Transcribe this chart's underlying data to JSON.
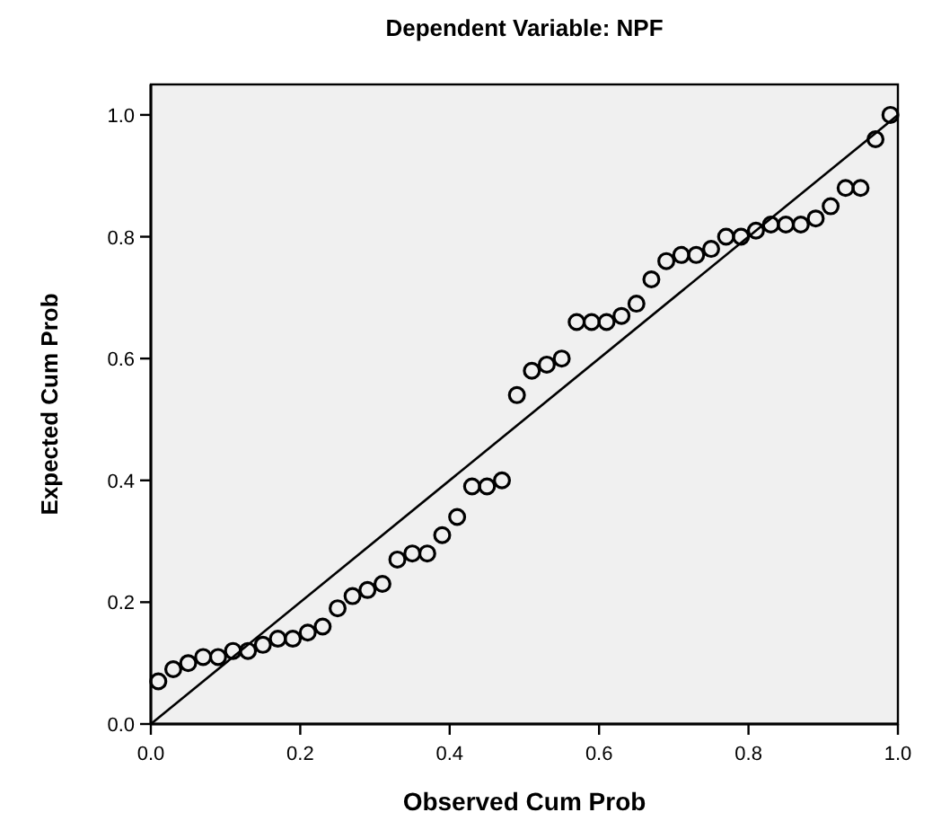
{
  "chart_data": {
    "type": "scatter",
    "title": "Dependent Variable: NPF",
    "xlabel": "Observed Cum Prob",
    "ylabel": "Expected Cum Prob",
    "xlim": [
      0,
      1
    ],
    "ylim": [
      0,
      1.05
    ],
    "xticks": [
      {
        "value": 0,
        "label": "0.0"
      },
      {
        "value": 0.2,
        "label": "0.2"
      },
      {
        "value": 0.4,
        "label": "0.4"
      },
      {
        "value": 0.6,
        "label": "0.6"
      },
      {
        "value": 0.8,
        "label": "0.8"
      },
      {
        "value": 1,
        "label": "1.0"
      }
    ],
    "yticks": [
      {
        "value": 0,
        "label": "0.0"
      },
      {
        "value": 0.2,
        "label": "0.2"
      },
      {
        "value": 0.4,
        "label": "0.4"
      },
      {
        "value": 0.6,
        "label": "0.6"
      },
      {
        "value": 0.8,
        "label": "0.8"
      },
      {
        "value": 1,
        "label": "1.0"
      }
    ],
    "grid": false,
    "marker": "circle",
    "series": [
      {
        "color": "#000000",
        "x": [
          0.01,
          0.03,
          0.05,
          0.07,
          0.09,
          0.11,
          0.13,
          0.15,
          0.17,
          0.19,
          0.21,
          0.23,
          0.25,
          0.27,
          0.29,
          0.31,
          0.33,
          0.35,
          0.37,
          0.39,
          0.41,
          0.43,
          0.45,
          0.47,
          0.49,
          0.51,
          0.53,
          0.55,
          0.57,
          0.59,
          0.61,
          0.63,
          0.65,
          0.67,
          0.69,
          0.71,
          0.73,
          0.75,
          0.77,
          0.79,
          0.81,
          0.83,
          0.85,
          0.87,
          0.89,
          0.91,
          0.93,
          0.95,
          0.97,
          0.99
        ],
        "values": [
          0.07,
          0.09,
          0.1,
          0.11,
          0.11,
          0.12,
          0.12,
          0.13,
          0.14,
          0.14,
          0.15,
          0.16,
          0.19,
          0.21,
          0.22,
          0.23,
          0.27,
          0.28,
          0.28,
          0.31,
          0.34,
          0.39,
          0.39,
          0.4,
          0.54,
          0.58,
          0.59,
          0.6,
          0.66,
          0.66,
          0.66,
          0.67,
          0.69,
          0.73,
          0.76,
          0.77,
          0.77,
          0.78,
          0.8,
          0.8,
          0.81,
          0.82,
          0.82,
          0.82,
          0.83,
          0.85,
          0.88,
          0.88,
          0.96,
          1.0
        ]
      },
      {
        "type": "line",
        "color": "#000000",
        "marker": "none",
        "x": [
          0,
          1
        ],
        "values": [
          0,
          1
        ]
      }
    ]
  }
}
